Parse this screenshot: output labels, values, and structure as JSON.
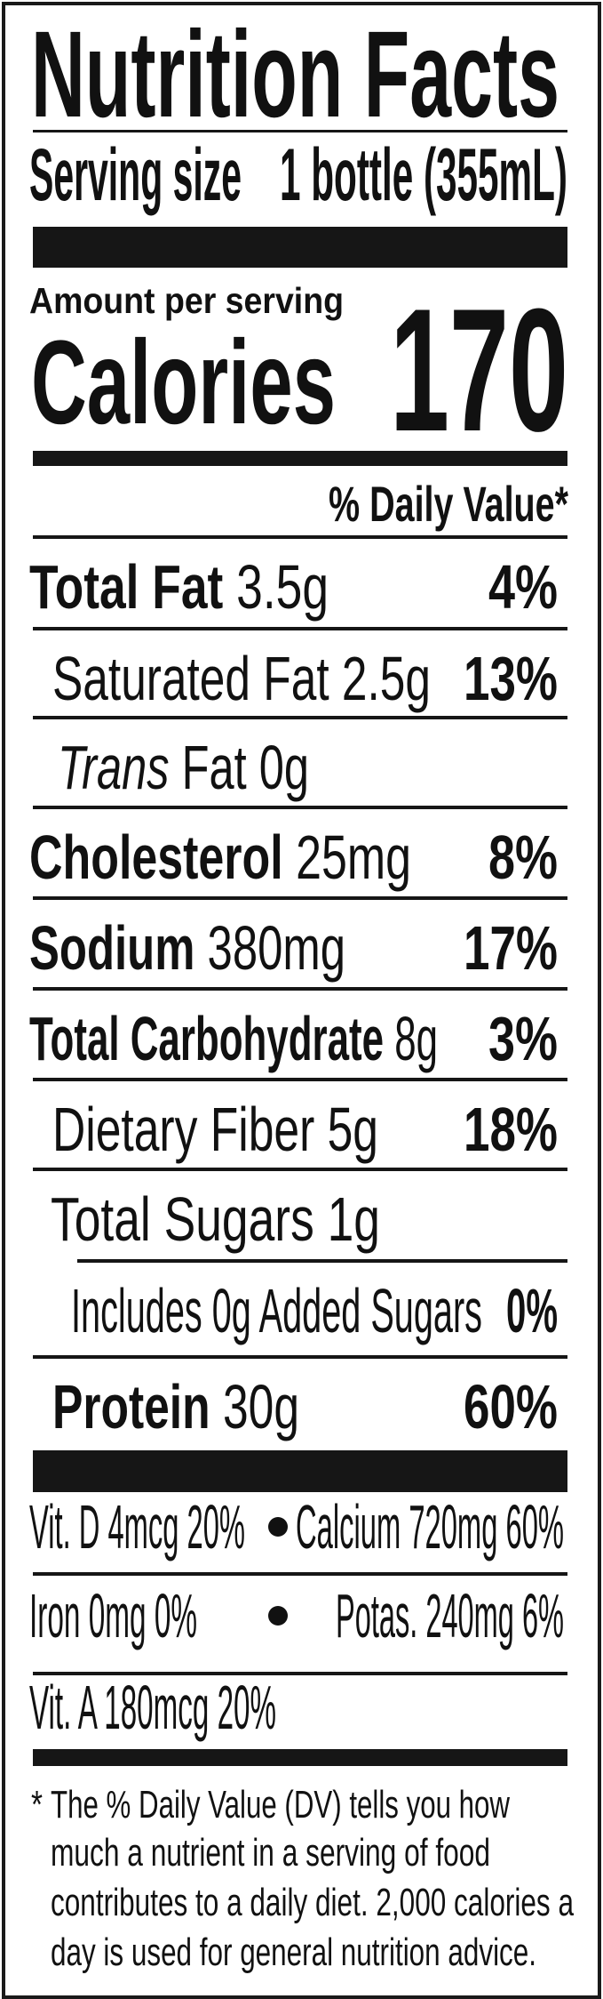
{
  "header": {
    "title": "Nutrition Facts",
    "serving_size_label": "Serving size",
    "serving_size_value": "1 bottle (355mL)",
    "amount_per_serving": "Amount per serving",
    "calories_label": "Calories",
    "calories_value": "170",
    "daily_value_header": "% Daily Value*"
  },
  "nutrients": [
    {
      "name": "Total Fat",
      "amount": "3.5g",
      "dv": "4%"
    },
    {
      "name": "Saturated Fat",
      "amount": "2.5g",
      "dv": "13%"
    },
    {
      "name": "Trans",
      "name_rest": "Fat",
      "amount": "0g",
      "dv": ""
    },
    {
      "name": "Cholesterol",
      "amount": "25mg",
      "dv": "8%"
    },
    {
      "name": "Sodium",
      "amount": "380mg",
      "dv": "17%"
    },
    {
      "name": "Total Carbohydrate",
      "amount": "8g",
      "dv": "3%"
    },
    {
      "name": "Dietary Fiber",
      "amount": "5g",
      "dv": "18%"
    },
    {
      "name": "Total Sugars",
      "amount": "1g",
      "dv": ""
    },
    {
      "name": "Includes 0g Added Sugars",
      "amount": "",
      "dv": "0%"
    },
    {
      "name": "Protein",
      "amount": "30g",
      "dv": "60%"
    }
  ],
  "vitamins": [
    {
      "left": "Vit. D 4mcg 20%",
      "right": "Calcium 720mg 60%"
    },
    {
      "left": "Iron 0mg 0%",
      "right": "Potas. 240mg 6%"
    },
    {
      "left": "Vit. A 180mcg 20%",
      "right": ""
    }
  ],
  "footnote": {
    "asterisk": "*",
    "lines": [
      "The % Daily Value (DV) tells you how",
      "much a nutrient in a serving of food",
      "contributes to a daily diet. 2,000 calories a",
      "day is used for general nutrition advice."
    ]
  },
  "colors": {
    "ink": "#111111",
    "background": "#ffffff"
  }
}
